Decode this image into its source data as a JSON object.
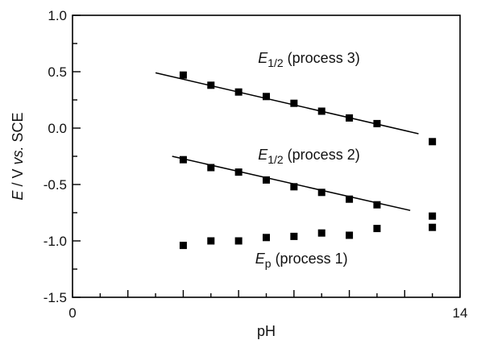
{
  "chart_data": {
    "type": "scatter",
    "xlabel": "pH",
    "ylabel": "E / V vs. SCE",
    "xlim": [
      0,
      14
    ],
    "ylim": [
      -1.5,
      1.0
    ],
    "grid": false,
    "legend": "none",
    "xticks": [
      {
        "value": 0,
        "label": "0"
      },
      {
        "value": 14,
        "label": "14"
      }
    ],
    "yticks": [
      {
        "value": 1.0,
        "label": "1.0"
      },
      {
        "value": 0.5,
        "label": "0.5"
      },
      {
        "value": 0.0,
        "label": "0.0"
      },
      {
        "value": -0.5,
        "label": "-0.5"
      },
      {
        "value": -1.0,
        "label": "-1.0"
      },
      {
        "value": -1.5,
        "label": "-1.5"
      }
    ],
    "series": [
      {
        "name": "E1/2 (process 3)",
        "x": [
          4,
          5,
          6,
          7,
          8,
          9,
          10,
          11,
          13
        ],
        "y": [
          0.47,
          0.38,
          0.32,
          0.28,
          0.22,
          0.15,
          0.09,
          0.04,
          -0.12
        ],
        "fit": {
          "x": [
            3,
            12.5
          ],
          "y": [
            0.49,
            -0.05
          ]
        }
      },
      {
        "name": "E1/2 (process 2)",
        "x": [
          4,
          5,
          6,
          7,
          8,
          9,
          10,
          11,
          13
        ],
        "y": [
          -0.28,
          -0.35,
          -0.39,
          -0.46,
          -0.52,
          -0.57,
          -0.63,
          -0.68,
          -0.78
        ],
        "fit": {
          "x": [
            3.6,
            12.2
          ],
          "y": [
            -0.25,
            -0.73
          ]
        }
      },
      {
        "name": "Ep (process 1)",
        "x": [
          4,
          5,
          6,
          7,
          8,
          9,
          10,
          11,
          13
        ],
        "y": [
          -1.04,
          -1.0,
          -1.0,
          -0.97,
          -0.96,
          -0.93,
          -0.95,
          -0.89,
          -0.88
        ]
      }
    ],
    "annotations": [
      {
        "id": "process3",
        "italic": "E",
        "sub": "1/2",
        "rest": " (process 3)",
        "x": 6.7,
        "y": 0.58
      },
      {
        "id": "process2",
        "italic": "E",
        "sub": "1/2",
        "rest": " (process 2)",
        "x": 6.7,
        "y": -0.28
      },
      {
        "id": "process1",
        "italic": "E",
        "sub": "p",
        "rest": " (process 1)",
        "x": 6.6,
        "y": -1.2
      }
    ],
    "ylabel_parts": {
      "italic": "E",
      "rest": " / V ",
      "vs": "vs.",
      "tail": " SCE"
    }
  }
}
